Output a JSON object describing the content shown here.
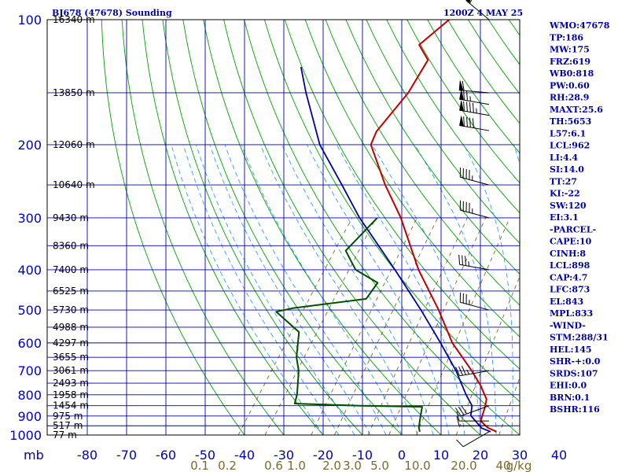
{
  "header": {
    "station_title": "BJ678 (47678) Sounding",
    "valid_time": "1200Z  4 MAY 25"
  },
  "indices": [
    "WMO:47678",
    "TP:186",
    "MW:175",
    "FRZ:619",
    "WB0:818",
    "PW:0.60",
    "RH:28.9",
    "MAXT:25.6",
    "TH:5653",
    "L57:6.1",
    "LCL:962",
    "LI:4.4",
    "SI:14.0",
    "TT:27",
    "KI:-22",
    "SW:120",
    "EI:3.1",
    "-PARCEL-",
    "CAPE:10",
    "CINH:8",
    "LCL:898",
    "CAP:4.7",
    "LFC:873",
    "EL:843",
    "MPL:833",
    "-WIND-",
    "STM:288/31",
    "HEL:145",
    "SHR-+:0.0",
    "SRDS:107",
    "EHI:0.0",
    "BRN:0.1",
    "BSHR:116"
  ],
  "axis": {
    "pressure_unit_label": "mb",
    "pressure_ticks": [
      100,
      200,
      300,
      400,
      500,
      600,
      700,
      800,
      900,
      1000
    ],
    "temp_ticks": [
      "-80",
      "-70",
      "-60",
      "-50",
      "-40",
      "-30",
      "-20",
      "-10",
      "0",
      "10",
      "20",
      "30",
      "40"
    ],
    "mixing_ratio_ticks": [
      "0.1",
      "0.2",
      "0.6",
      "1.0",
      "2.0",
      "3.0",
      "5.0",
      "10.0",
      "20.0",
      "40"
    ],
    "mixing_ratio_unit": "g/kg"
  },
  "colors": {
    "frame": "#000000",
    "grid": "#0000b0",
    "dry_adiabat": "#00a000",
    "moist_adiabat": "#1e90ff",
    "mixing_ratio": "#6b5a10",
    "temperature": "#c00000",
    "dewpoint": "#004d00",
    "parcel": "#0000a0",
    "wind_barb": "#000000"
  },
  "chart_data": {
    "type": "skew-t",
    "title": "BJ678 (47678) Sounding",
    "xlabel": "",
    "ylabel": "mb",
    "pressure_log_scale": true,
    "ylim": [
      1000,
      100
    ],
    "xlim": [
      -80,
      40
    ],
    "grid": true,
    "height_labels": [
      {
        "p": 100,
        "text": "16340 m"
      },
      {
        "p": 150,
        "text": "13850 m"
      },
      {
        "p": 200,
        "text": "12060 m"
      },
      {
        "p": 250,
        "text": "10640 m"
      },
      {
        "p": 300,
        "text": "9430 m"
      },
      {
        "p": 350,
        "text": "8360 m"
      },
      {
        "p": 400,
        "text": "7400 m"
      },
      {
        "p": 450,
        "text": "6525 m"
      },
      {
        "p": 500,
        "text": "5730 m"
      },
      {
        "p": 550,
        "text": "4988 m"
      },
      {
        "p": 600,
        "text": "4297 m"
      },
      {
        "p": 650,
        "text": "3655 m"
      },
      {
        "p": 700,
        "text": "3061 m"
      },
      {
        "p": 750,
        "text": "2493 m"
      },
      {
        "p": 800,
        "text": "1958 m"
      },
      {
        "p": 850,
        "text": "1454 m"
      },
      {
        "p": 900,
        "text": "975 m"
      },
      {
        "p": 950,
        "text": "517 m"
      },
      {
        "p": 1000,
        "text": "77 m"
      }
    ],
    "series": [
      {
        "name": "Temperature",
        "points": [
          [
            982,
            23.5
          ],
          [
            960,
            20.5
          ],
          [
            925,
            17.5
          ],
          [
            855,
            16.0
          ],
          [
            820,
            15.0
          ],
          [
            760,
            11.0
          ],
          [
            700,
            6.0
          ],
          [
            600,
            -4.0
          ],
          [
            500,
            -13.5
          ],
          [
            400,
            -26.0
          ],
          [
            300,
            -40.0
          ],
          [
            250,
            -50.0
          ],
          [
            200,
            -61.0
          ],
          [
            186,
            -62.0
          ],
          [
            150,
            -61.0
          ],
          [
            125,
            -62.0
          ],
          [
            115,
            -67.0
          ],
          [
            100,
            -64.0
          ]
        ]
      },
      {
        "name": "Dewpoint",
        "points": [
          [
            982,
            4.0
          ],
          [
            960,
            3.0
          ],
          [
            925,
            2.0
          ],
          [
            855,
            0.0
          ],
          [
            850,
            -16.0
          ],
          [
            840,
            -33.0
          ],
          [
            800,
            -34.0
          ],
          [
            700,
            -38.0
          ],
          [
            650,
            -41.0
          ],
          [
            565,
            -45.0
          ],
          [
            505,
            -54.5
          ],
          [
            495,
            -51.0
          ],
          [
            470,
            -34.0
          ],
          [
            430,
            -34.0
          ],
          [
            400,
            -42.0
          ],
          [
            360,
            -48.0
          ],
          [
            300,
            -46.0
          ]
        ]
      },
      {
        "name": "Parcel",
        "points": [
          [
            982,
            22.0
          ],
          [
            962,
            19.0
          ],
          [
            898,
            14.0
          ],
          [
            850,
            12.5
          ],
          [
            800,
            9.0
          ],
          [
            700,
            2.0
          ],
          [
            600,
            -7.0
          ],
          [
            500,
            -18.0
          ],
          [
            400,
            -32.0
          ],
          [
            300,
            -50.5
          ],
          [
            250,
            -61.0
          ],
          [
            200,
            -74.0
          ],
          [
            150,
            -87.0
          ],
          [
            130,
            -93.0
          ]
        ]
      }
    ],
    "wind_barbs": [
      {
        "p": 100,
        "dir": 310,
        "spd": 55
      },
      {
        "p": 150,
        "dir": 275,
        "spd": 60
      },
      {
        "p": 160,
        "dir": 280,
        "spd": 75
      },
      {
        "p": 170,
        "dir": 280,
        "spd": 95
      },
      {
        "p": 185,
        "dir": 280,
        "spd": 90
      },
      {
        "p": 250,
        "dir": 285,
        "spd": 45
      },
      {
        "p": 300,
        "dir": 285,
        "spd": 45
      },
      {
        "p": 400,
        "dir": 280,
        "spd": 35
      },
      {
        "p": 500,
        "dir": 285,
        "spd": 35
      },
      {
        "p": 700,
        "dir": 260,
        "spd": 35
      },
      {
        "p": 850,
        "dir": 250,
        "spd": 30
      },
      {
        "p": 925,
        "dir": 270,
        "spd": 10
      },
      {
        "p": 950,
        "dir": 270,
        "spd": 10
      },
      {
        "p": 982,
        "dir": 240,
        "spd": 10
      }
    ]
  }
}
